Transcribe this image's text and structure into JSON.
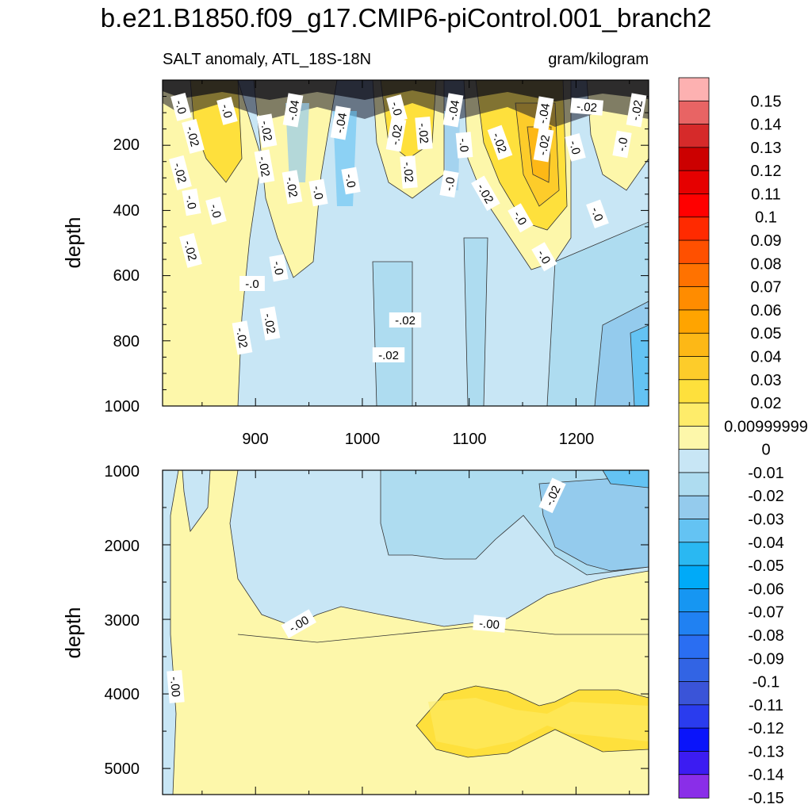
{
  "chart_data": {
    "type": "contour",
    "title": "b.e21.B1850.f09_g17.CMIP6-piControl.001_branch2",
    "variable_label": "SALT anomaly, ATL_18S-18N",
    "units_label": "gram/kilogram",
    "xlabel": "",
    "ylabel": "depth",
    "x_ticks": [
      "900",
      "1000",
      "1100",
      "1200"
    ],
    "x_range": [
      813,
      1268
    ],
    "panels": [
      {
        "name": "upper",
        "y_range": [
          0,
          1000
        ],
        "y_ticks": [
          "200",
          "400",
          "600",
          "800",
          "1000"
        ],
        "contour_labels": [
          "-.0",
          "-.0",
          "-.02",
          "-.04",
          "-.04",
          "-.0",
          "-.02",
          "-.04",
          "-.04",
          "-.02",
          "-.02",
          "-.02",
          "-.02",
          "-.0",
          "-.02",
          "-.02",
          "-.0",
          "-.0",
          "-.02",
          "-.02",
          "-.02",
          "-.02",
          "-.0",
          "-.0",
          "-.0",
          "-.02",
          "-.0",
          "-.0",
          "-.0",
          "-.0",
          "-.02",
          "-.0",
          "-.0",
          "-.0",
          "-.02",
          "-.02",
          "-.02",
          "-.02"
        ]
      },
      {
        "name": "lower",
        "y_range": [
          1000,
          5300
        ],
        "y_ticks": [
          "1000",
          "2000",
          "3000",
          "4000",
          "5000"
        ],
        "contour_labels": [
          "-.02",
          "-.00",
          "-.00",
          "-.00"
        ]
      }
    ],
    "levels": [
      "0.15",
      "0.14",
      "0.13",
      "0.12",
      "0.11",
      "0.1",
      "0.09",
      "0.08",
      "0.07",
      "0.06",
      "0.05",
      "0.04",
      "0.03",
      "0.02",
      "0.00999999",
      "0",
      "-0.01",
      "-0.02",
      "-0.03",
      "-0.04",
      "-0.05",
      "-0.06",
      "-0.07",
      "-0.08",
      "-0.09",
      "-0.1",
      "-0.11",
      "-0.12",
      "-0.13",
      "-0.14",
      "-0.15"
    ],
    "colors": [
      "#fdb1b1",
      "#e86464",
      "#d62a2a",
      "#cc0000",
      "#e60000",
      "#ff0000",
      "#ff2a00",
      "#ff5000",
      "#ff7200",
      "#ff8c00",
      "#ffa400",
      "#fdb816",
      "#fdcc2a",
      "#fee03c",
      "#feec6a",
      "#fdf7aa",
      "#c8e6f5",
      "#aedcf0",
      "#94cbed",
      "#64c3f3",
      "#2ab8f2",
      "#00aaf8",
      "#1696f2",
      "#2081f2",
      "#2a6ef2",
      "#3264e4",
      "#3a54d8",
      "#2a3cee",
      "#0a14fa",
      "#3c1cf2",
      "#8a2ee8"
    ]
  }
}
